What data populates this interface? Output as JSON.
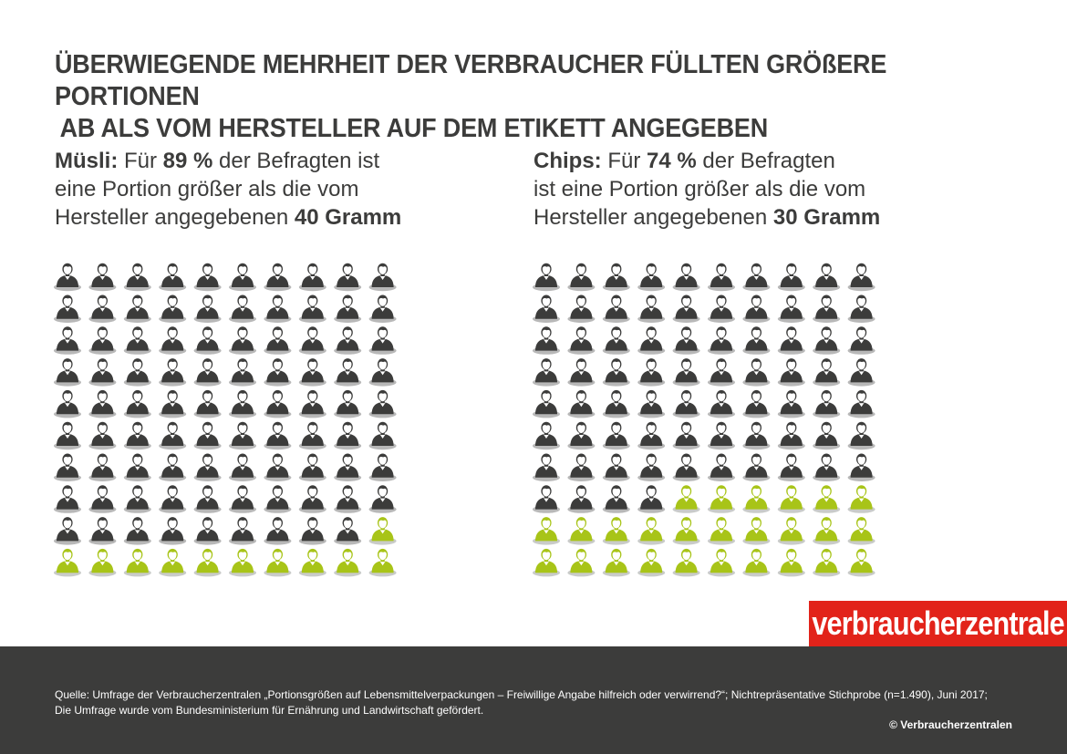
{
  "title": {
    "line1": "ÜBERWIEGENDE MEHRHEIT DER VERBRAUCHER FÜLLTEN GRÖßERE PORTIONEN",
    "line2": "AB ALS VOM HERSTELLER AUF DEM ETIKETT ANGEGEBEN"
  },
  "panels": {
    "muesli": {
      "label": "Müsli:",
      "pre": " Für ",
      "percent": "89 %",
      "mid": " der Befragten ist",
      "line2": "eine Portion größer als die vom",
      "line3_pre": "Hersteller angegebenen ",
      "grams": "40 Gramm"
    },
    "chips": {
      "label": "Chips:",
      "pre": " Für ",
      "percent": "74 %",
      "mid": " der Befragten",
      "line2": "ist eine Portion größer als die vom",
      "line3_pre": "Hersteller angegebenen ",
      "grams": "30 Gramm"
    }
  },
  "chart_data": [
    {
      "type": "pictogram",
      "name": "Müsli",
      "total": 100,
      "rows": 10,
      "cols": 10,
      "highlight_count": 89,
      "rest_count": 11,
      "colors": {
        "highlight": "#3c3c3b",
        "rest": "#a8c418"
      }
    },
    {
      "type": "pictogram",
      "name": "Chips",
      "total": 100,
      "rows": 10,
      "cols": 10,
      "highlight_count": 74,
      "rest_count": 26,
      "colors": {
        "highlight": "#3c3c3b",
        "rest": "#a8c418"
      }
    }
  ],
  "logo": {
    "text": "verbraucherzentrale",
    "color": "#e2231a"
  },
  "footer": {
    "source_line1": "Quelle: Umfrage der Verbraucherzentralen „Portionsgrößen auf Lebensmittelverpackungen – Freiwillige Angabe hilfreich oder verwirrend?“; Nichtrepräsentative Stichprobe (n=1.490), Juni 2017;",
    "source_line2": "Die Umfrage wurde vom Bundesministerium für Ernährung und Landwirtschaft gefördert.",
    "copyright": "© Verbraucherzentralen"
  }
}
